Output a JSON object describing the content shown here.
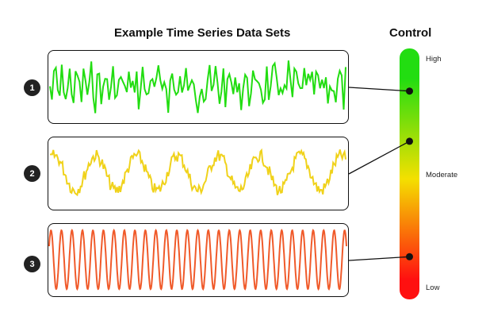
{
  "titles": {
    "main": "Example Time Series Data Sets",
    "control": "Control"
  },
  "series": [
    {
      "badge": "1",
      "color": "#22dd11",
      "pattern": "noisy-high-frequency"
    },
    {
      "badge": "2",
      "color": "#f0d21a",
      "pattern": "noisy-periodic"
    },
    {
      "badge": "3",
      "color": "#f05a2a",
      "pattern": "clean-sine"
    }
  ],
  "control": {
    "labels": {
      "high": "High",
      "moderate": "Moderate",
      "low": "Low"
    },
    "gradient": [
      "#22dd11",
      "#f4e000",
      "#ff1010"
    ],
    "levels": [
      0.83,
      0.63,
      0.17
    ]
  },
  "colors": {
    "border": "#111111",
    "badge": "#222222"
  }
}
